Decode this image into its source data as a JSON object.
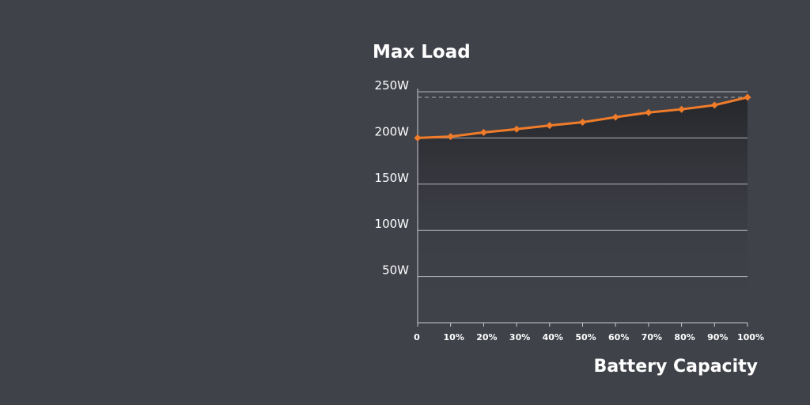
{
  "chart_data": {
    "type": "line",
    "title": "Max Load",
    "xlabel": "Battery Capacity",
    "ylabel": "",
    "x": [
      0,
      10,
      20,
      30,
      40,
      50,
      60,
      70,
      80,
      90,
      100
    ],
    "x_tick_labels": [
      "0",
      "10%",
      "20%",
      "30%",
      "40%",
      "50%",
      "60%",
      "70%",
      "80%",
      "90%",
      "100%"
    ],
    "y_tick_values": [
      50,
      100,
      150,
      200,
      250
    ],
    "y_tick_labels": [
      "50W",
      "100W",
      "150W",
      "200W",
      "250W"
    ],
    "xlim": [
      0,
      100
    ],
    "ylim": [
      0,
      250
    ],
    "grid": true,
    "reference_line": 244,
    "series": [
      {
        "values": [
          200,
          201.5,
          206,
          209.5,
          213.5,
          217,
          222.5,
          227.5,
          231,
          235.5,
          244
        ]
      }
    ],
    "colors": {
      "background": "#40424a",
      "line": "#f07c2a",
      "grid": "#c9cacd",
      "reference_line": "#a8a9ad",
      "area_top": "#26272b"
    }
  }
}
